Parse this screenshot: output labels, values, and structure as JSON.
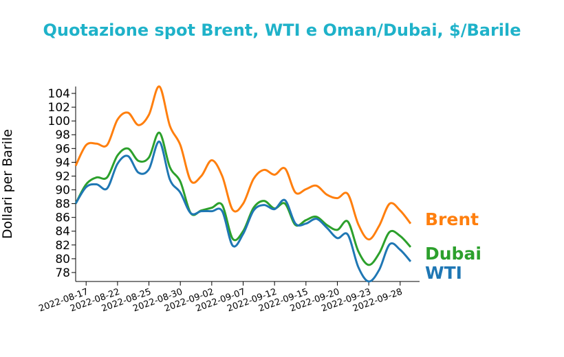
{
  "chart_data": {
    "type": "line",
    "title": "Quotazione spot Brent, WTI e Oman/Dubai, $/Barile",
    "y_label": "Dollari per Barile",
    "categories": [
      null,
      "2022-08-17",
      null,
      null,
      "2022-08-22",
      null,
      null,
      "2022-08-25",
      null,
      null,
      "2022-08-30",
      null,
      null,
      "2022-09-02",
      null,
      null,
      "2022-09-07",
      null,
      null,
      "2022-09-12",
      null,
      null,
      "2022-09-15",
      null,
      null,
      "2022-09-20",
      null,
      null,
      "2022-09-23",
      null,
      null,
      "2022-09-28",
      null
    ],
    "series": [
      {
        "name": "Brent",
        "color": "#ff7f0e",
        "values": [
          93.5,
          96.5,
          96.7,
          96.5,
          100.2,
          101.2,
          99.4,
          100.9,
          105,
          99.3,
          96.5,
          91.3,
          92,
          94.3,
          92,
          87.1,
          88,
          91.6,
          92.9,
          92.2,
          93.1,
          89.6,
          90.1,
          90.6,
          89.3,
          88.8,
          89.4,
          85,
          82.8,
          84.8,
          88,
          87,
          85.1
        ]
      },
      {
        "name": "Dubai",
        "color": "#2ca02c",
        "values": [
          88,
          90.8,
          91.8,
          91.8,
          95,
          96,
          94.2,
          94.7,
          98.3,
          93.3,
          91.2,
          86.6,
          87,
          87.4,
          87.8,
          82.9,
          84,
          87.4,
          88.4,
          87.3,
          88,
          84.9,
          85.6,
          86.1,
          84.9,
          84.2,
          85.4,
          81.1,
          79.1,
          80.8,
          83.9,
          83.3,
          81.7
        ]
      },
      {
        "name": "WTI",
        "color": "#1f77b4",
        "values": [
          88,
          90.4,
          90.8,
          90.2,
          93.8,
          94.9,
          92.5,
          93,
          97,
          91.5,
          89.6,
          86.6,
          86.9,
          86.9,
          86.9,
          81.9,
          83.6,
          87,
          87.8,
          87.2,
          88.5,
          85.1,
          85.1,
          85.8,
          84.5,
          83,
          83.5,
          78.8,
          76.7,
          78.4,
          82.1,
          81.3,
          79.6
        ]
      }
    ],
    "ylim": [
      76.7,
      105
    ],
    "yticks": [
      78,
      80,
      82,
      84,
      86,
      88,
      90,
      92,
      94,
      96,
      98,
      100,
      102,
      104
    ],
    "grid": false
  }
}
